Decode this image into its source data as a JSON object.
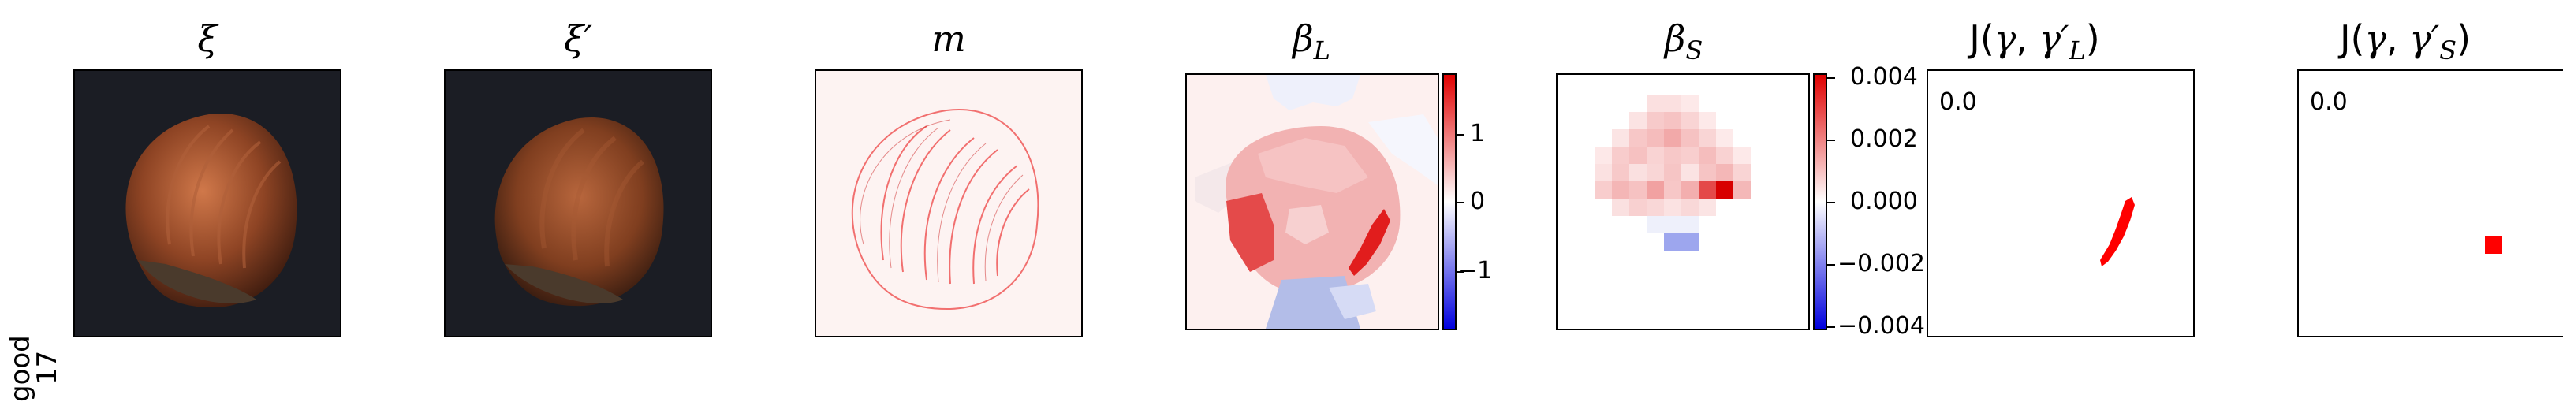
{
  "row_label": {
    "line1": "good",
    "line2": "17"
  },
  "panels": [
    {
      "title": "ξ"
    },
    {
      "title": "ξ′"
    },
    {
      "title": "m"
    },
    {
      "title": "βL"
    },
    {
      "title": "βS"
    },
    {
      "title": "J(γ, γ′L)"
    },
    {
      "title": "J(γ, γ′S)"
    }
  ],
  "colorbar_L": {
    "ticks": [
      "1",
      "0",
      "−1"
    ]
  },
  "colorbar_S": {
    "ticks": [
      "0.004",
      "0.002",
      "0.000",
      "−0.002",
      "−0.004"
    ]
  },
  "jaccard_L": "0.0",
  "jaccard_S": "0.0",
  "colors": {
    "positive": "#ff0000",
    "negative": "#0000ff",
    "background": "#ffffff"
  }
}
